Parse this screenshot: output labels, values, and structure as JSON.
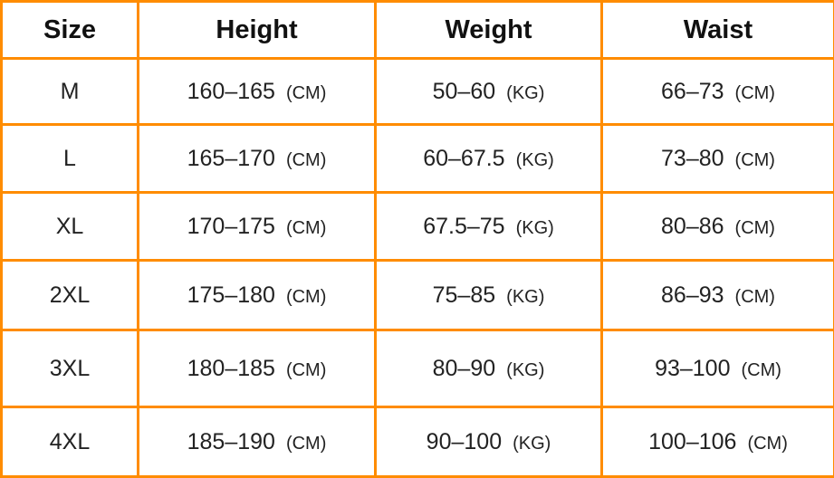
{
  "colors": {
    "border": "#ff8c00",
    "text": "#222222"
  },
  "headers": [
    "Size",
    "Height",
    "Weight",
    "Waist"
  ],
  "rows": [
    {
      "size": "M",
      "height": "160–165",
      "height_unit": "(CM)",
      "weight": "50–60",
      "weight_unit": "(KG)",
      "waist": "66–73",
      "waist_unit": "(CM)"
    },
    {
      "size": "L",
      "height": "165–170",
      "height_unit": "(CM)",
      "weight": "60–67.5",
      "weight_unit": "(KG)",
      "waist": "73–80",
      "waist_unit": "(CM)"
    },
    {
      "size": "XL",
      "height": "170–175",
      "height_unit": "(CM)",
      "weight": "67.5–75",
      "weight_unit": "(KG)",
      "waist": "80–86",
      "waist_unit": "(CM)"
    },
    {
      "size": "2XL",
      "height": "175–180",
      "height_unit": "(CM)",
      "weight": "75–85",
      "weight_unit": "(KG)",
      "waist": "86–93",
      "waist_unit": "(CM)"
    },
    {
      "size": "3XL",
      "height": "180–185",
      "height_unit": "(CM)",
      "weight": "80–90",
      "weight_unit": "(KG)",
      "waist": "93–100",
      "waist_unit": "(CM)"
    },
    {
      "size": "4XL",
      "height": "185–190",
      "height_unit": "(CM)",
      "weight": "90–100",
      "weight_unit": "(KG)",
      "waist": "100–106",
      "waist_unit": "(CM)"
    }
  ]
}
